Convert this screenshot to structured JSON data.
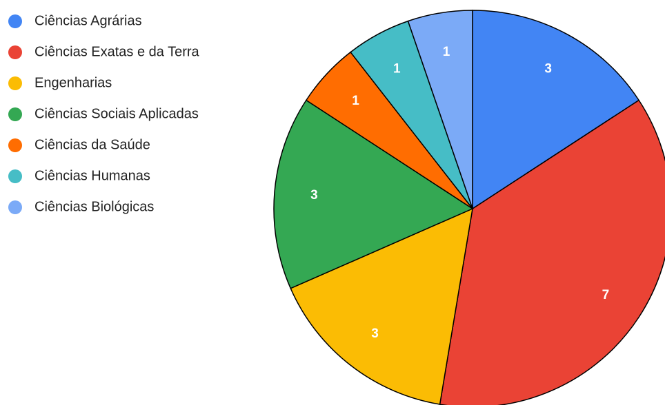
{
  "chart_data": {
    "type": "pie",
    "categories": [
      "Ciências Agrárias",
      "Ciências Exatas e da Terra",
      "Engenharias",
      "Ciências Sociais Aplicadas",
      "Ciências da Saúde",
      "Ciências Humanas",
      "Ciências Biológicas"
    ],
    "values": [
      3,
      7,
      3,
      3,
      1,
      1,
      1
    ],
    "colors": [
      "#4285f4",
      "#ea4335",
      "#fbbc04",
      "#34a853",
      "#ff6d01",
      "#46bdc6",
      "#7baaf7"
    ],
    "legend": "left"
  }
}
